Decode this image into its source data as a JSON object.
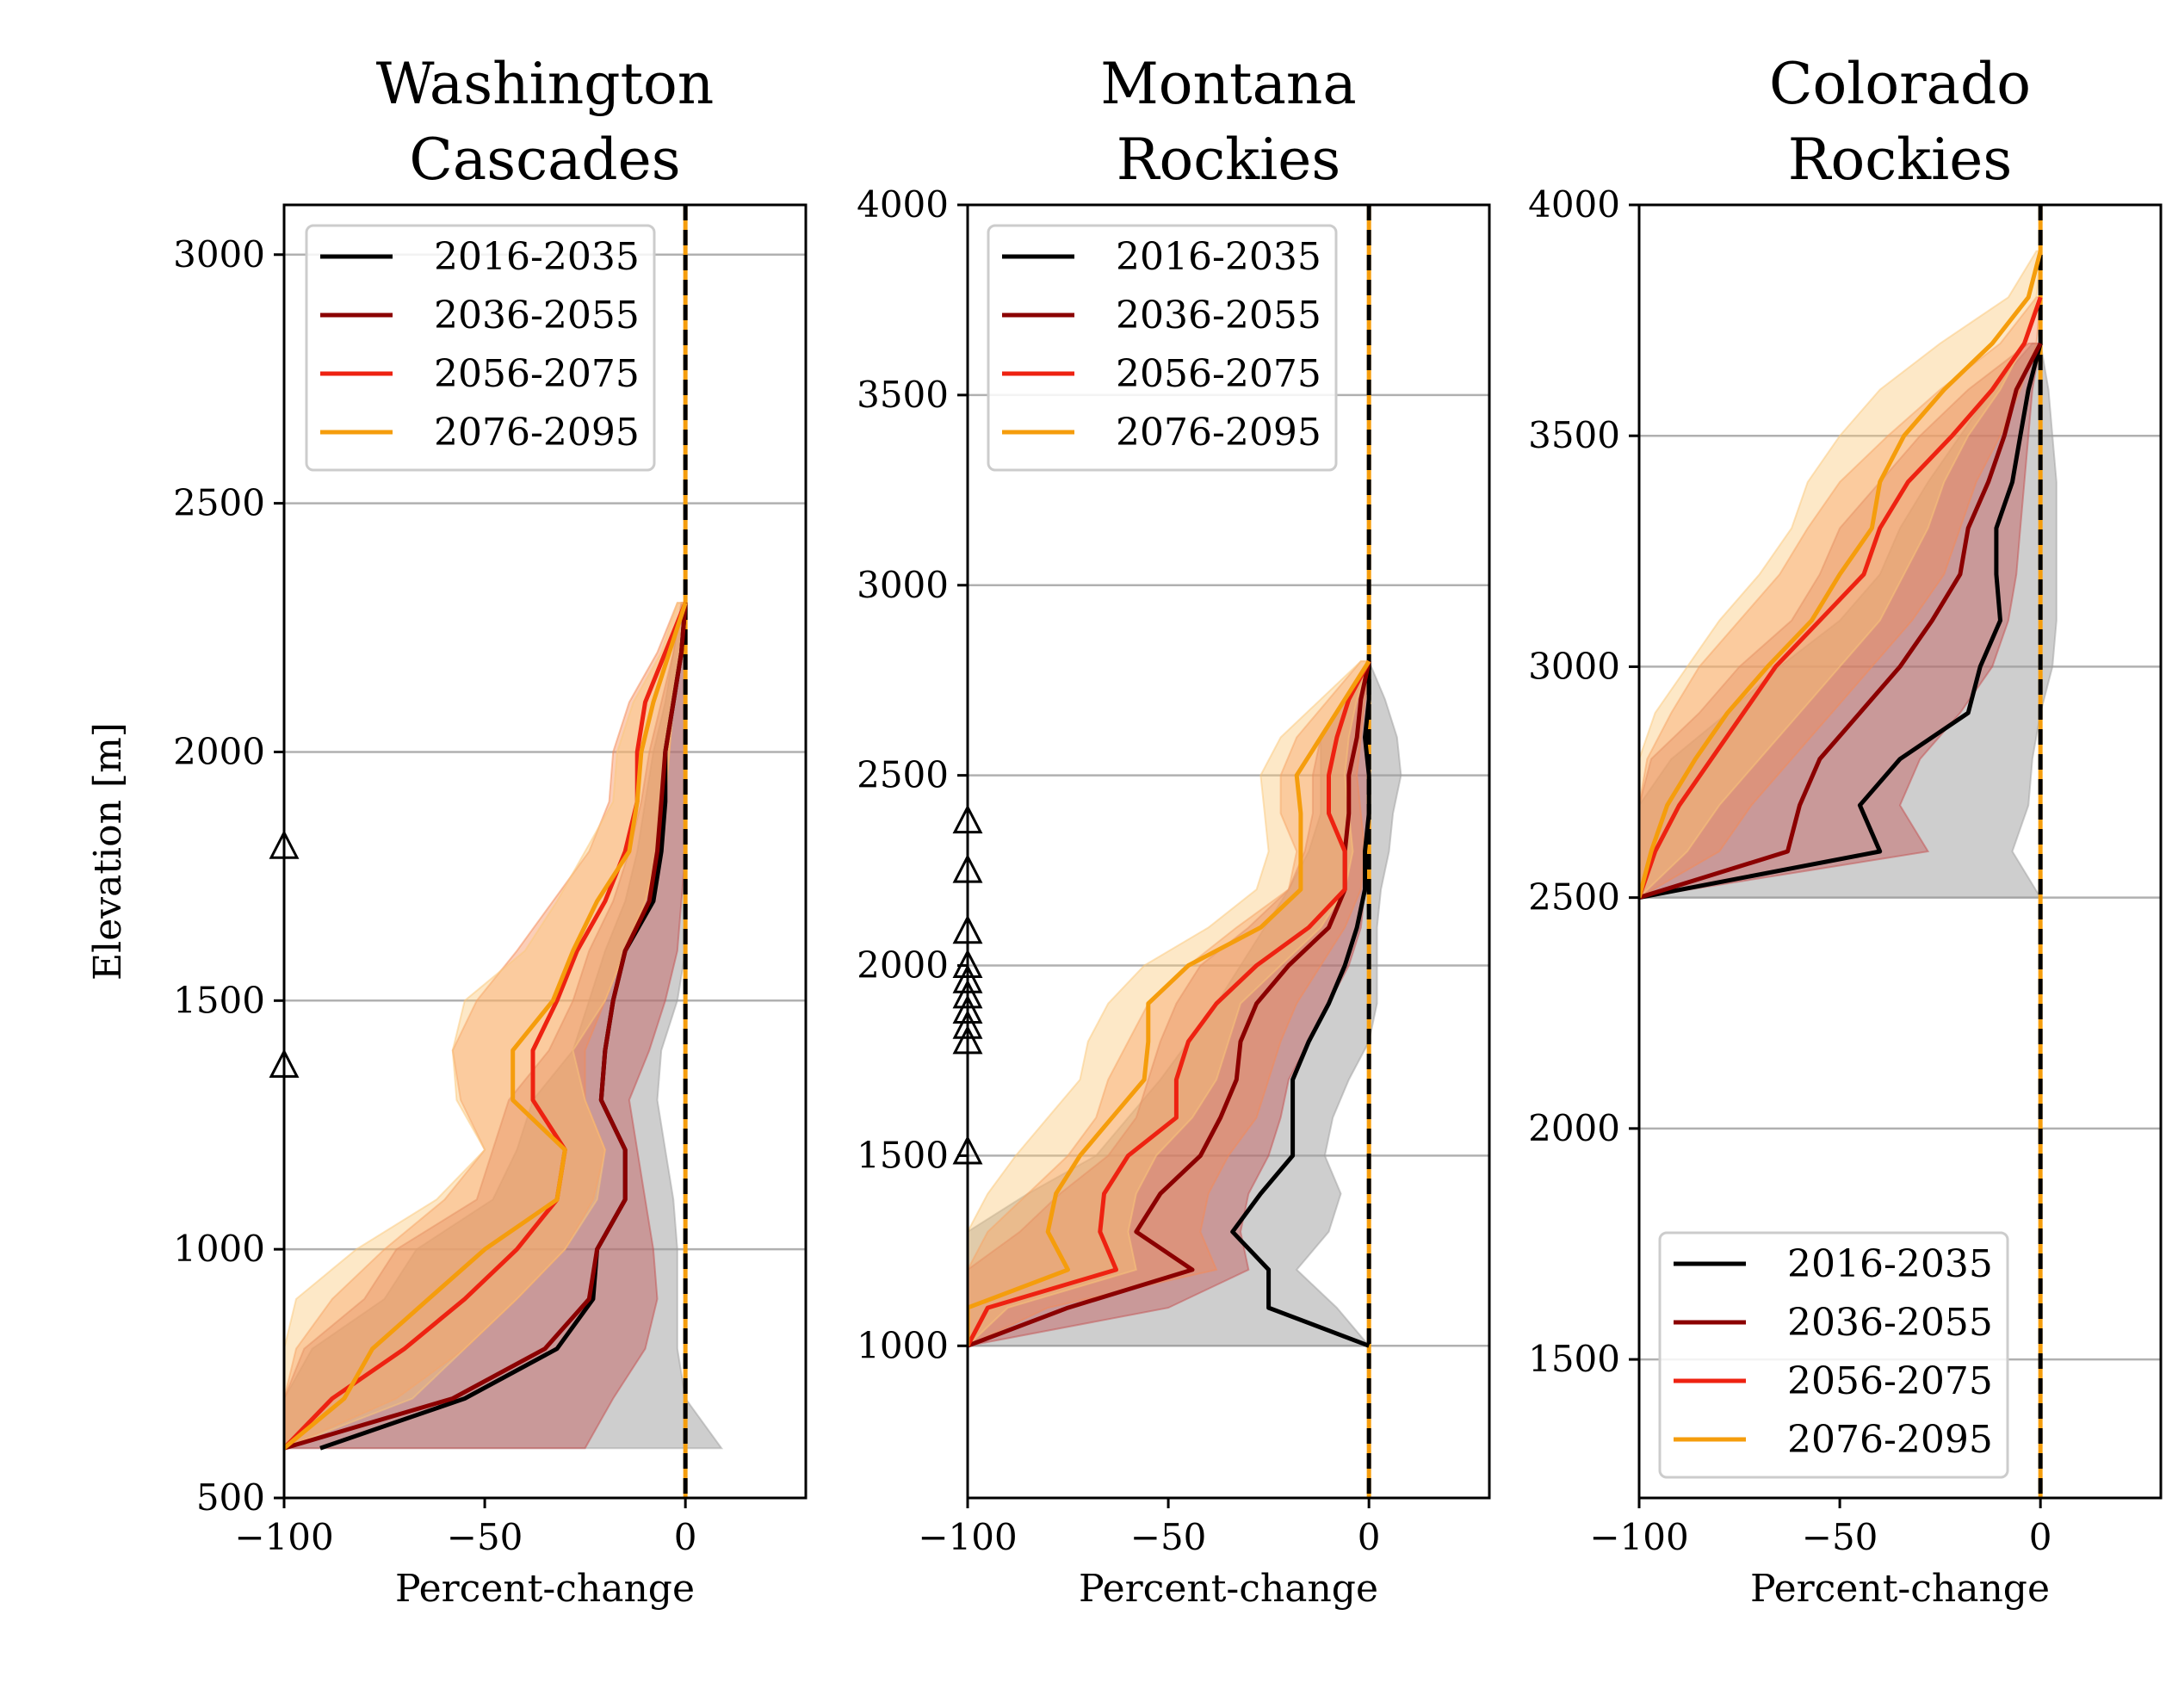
{
  "series_colors": {
    "2016-2035": "#000000",
    "2036-2055": "#8b0000",
    "2056-2075": "#ee2211",
    "2076-2095": "#f59d0c"
  },
  "band_colors": {
    "2016-2035": "#9e9e9e",
    "2036-2055": "#c45050",
    "2056-2075": "#f58a55",
    "2076-2095": "#fbc77a"
  },
  "chart_data": [
    {
      "type": "line",
      "title": "Washington\nCascades",
      "xlabel": "Percent-change",
      "ylabel": "Elevation [m]",
      "xlim": [
        -100,
        30
      ],
      "ylim": [
        500,
        3100
      ],
      "xticks": [
        -100,
        -50,
        0
      ],
      "xtick_labels": [
        "−100",
        "−50",
        "0"
      ],
      "yticks": [
        500,
        1000,
        1500,
        2000,
        2500,
        3000
      ],
      "ytick_labels": [
        "500",
        "1000",
        "1500",
        "2000",
        "2500",
        "3000"
      ],
      "grid": "y",
      "legend": "upper-left",
      "zero_line": true,
      "triangle_markers_y": [
        1370,
        1810
      ],
      "series": [
        {
          "name": "2016-2035",
          "y": [
            600,
            700,
            800,
            900,
            1000,
            1100,
            1200,
            1300,
            1400,
            1500,
            1600,
            1700,
            1800,
            1900,
            2000,
            2100,
            2200,
            2300
          ],
          "x": [
            -91,
            -55,
            -32,
            -23,
            -22,
            -15,
            -15,
            -21,
            -20,
            -18,
            -15,
            -8,
            -6,
            -5,
            -5,
            -3,
            -1,
            0
          ],
          "lower": [
            -100,
            -100,
            -93,
            -75,
            -67,
            -48,
            -42,
            -38,
            -28,
            -24,
            -20,
            -15,
            -12,
            -10,
            -8,
            -5,
            -3,
            -1
          ],
          "upper": [
            9,
            0,
            -2,
            -2,
            -2,
            -3,
            -5,
            -7,
            -6,
            -2,
            0,
            0,
            0,
            0,
            0,
            0,
            0,
            0
          ]
        },
        {
          "name": "2036-2055",
          "y": [
            600,
            700,
            800,
            900,
            1000,
            1100,
            1200,
            1300,
            1400,
            1500,
            1600,
            1700,
            1800,
            1900,
            2000,
            2100,
            2200,
            2300
          ],
          "x": [
            -100,
            -58,
            -35,
            -24,
            -22,
            -15,
            -15,
            -21,
            -20,
            -18,
            -15,
            -9,
            -7,
            -6,
            -5,
            -3,
            -1,
            0
          ],
          "lower": [
            -100,
            -100,
            -95,
            -80,
            -72,
            -52,
            -48,
            -44,
            -34,
            -28,
            -24,
            -18,
            -14,
            -11,
            -9,
            -6,
            -3,
            -1
          ],
          "upper": [
            -25,
            -18,
            -10,
            -7,
            -8,
            -10,
            -12,
            -14,
            -9,
            -5,
            -2,
            -1,
            0,
            0,
            0,
            0,
            0,
            0
          ]
        },
        {
          "name": "2056-2075",
          "y": [
            600,
            700,
            800,
            900,
            1000,
            1100,
            1200,
            1300,
            1400,
            1500,
            1600,
            1700,
            1800,
            1900,
            2000,
            2100,
            2200,
            2300
          ],
          "x": [
            -100,
            -88,
            -70,
            -55,
            -42,
            -32,
            -30,
            -38,
            -38,
            -32,
            -27,
            -20,
            -15,
            -12,
            -12,
            -10,
            -5,
            0
          ],
          "lower": [
            -100,
            -100,
            -97,
            -88,
            -75,
            -60,
            -50,
            -56,
            -58,
            -52,
            -42,
            -33,
            -24,
            -19,
            -18,
            -14,
            -7,
            -2
          ],
          "upper": [
            -100,
            -72,
            -55,
            -42,
            -30,
            -23,
            -20,
            -25,
            -25,
            -20,
            -15,
            -10,
            -7,
            -5,
            -4,
            -3,
            -1,
            0
          ]
        },
        {
          "name": "2076-2095",
          "y": [
            600,
            700,
            800,
            900,
            1000,
            1100,
            1200,
            1300,
            1400,
            1500,
            1600,
            1700,
            1800,
            1900,
            2000,
            2100,
            2200,
            2300
          ],
          "x": [
            -100,
            -85,
            -78,
            -64,
            -50,
            -32,
            -30,
            -43,
            -43,
            -33,
            -28,
            -22,
            -14,
            -12,
            -11,
            -8,
            -4,
            0
          ],
          "lower": [
            -100,
            -100,
            -100,
            -97,
            -82,
            -62,
            -50,
            -57,
            -58,
            -55,
            -40,
            -32,
            -25,
            -18,
            -17,
            -13,
            -6,
            -2
          ],
          "upper": [
            -100,
            -68,
            -55,
            -42,
            -30,
            -22,
            -20,
            -25,
            -28,
            -20,
            -15,
            -10,
            -7,
            -5,
            -4,
            -3,
            -1,
            0
          ]
        }
      ]
    },
    {
      "type": "line",
      "title": "Montana\nRockies",
      "xlabel": "Percent-change",
      "ylabel": "",
      "xlim": [
        -100,
        30
      ],
      "ylim": [
        600,
        4000
      ],
      "xticks": [
        -100,
        -50,
        0
      ],
      "xtick_labels": [
        "−100",
        "−50",
        "0"
      ],
      "yticks": [
        1000,
        1500,
        2000,
        2500,
        3000,
        3500,
        4000
      ],
      "ytick_labels": [
        "1000",
        "1500",
        "2000",
        "2500",
        "3000",
        "3500",
        "4000"
      ],
      "grid": "y",
      "legend": "upper-left",
      "zero_line": true,
      "triangle_markers_y": [
        1510,
        1800,
        1840,
        1880,
        1920,
        1960,
        2000,
        2090,
        2250,
        2380
      ],
      "series": [
        {
          "name": "2016-2035",
          "y": [
            1000,
            1100,
            1200,
            1300,
            1400,
            1500,
            1600,
            1700,
            1800,
            1900,
            2000,
            2100,
            2200,
            2300,
            2400,
            2500,
            2600,
            2700,
            2800
          ],
          "x": [
            0,
            -25,
            -25,
            -34,
            -27,
            -19,
            -19,
            -19,
            -15,
            -10,
            -6,
            -3,
            -1,
            -1,
            0,
            0,
            -1,
            0,
            0
          ],
          "lower": [
            -100,
            -100,
            -100,
            -100,
            -85,
            -68,
            -60,
            -52,
            -45,
            -38,
            -32,
            -26,
            -20,
            -15,
            -12,
            -12,
            -12,
            -6,
            0
          ],
          "upper": [
            0,
            -8,
            -18,
            -10,
            -7,
            -11,
            -9,
            -5,
            0,
            2,
            2,
            2,
            3,
            5,
            6,
            8,
            7,
            4,
            0
          ]
        },
        {
          "name": "2036-2055",
          "y": [
            1000,
            1100,
            1200,
            1300,
            1400,
            1500,
            1600,
            1700,
            1800,
            1900,
            2000,
            2100,
            2200,
            2300,
            2400,
            2500,
            2600,
            2700,
            2800
          ],
          "x": [
            -100,
            -75,
            -44,
            -58,
            -52,
            -42,
            -37,
            -33,
            -32,
            -28,
            -20,
            -10,
            -6,
            -6,
            -5,
            -5,
            -3,
            -2,
            0
          ],
          "lower": [
            -100,
            -100,
            -100,
            -87,
            -77,
            -65,
            -58,
            -55,
            -52,
            -48,
            -42,
            -30,
            -20,
            -16,
            -14,
            -14,
            -12,
            -6,
            0
          ],
          "upper": [
            -100,
            -50,
            -30,
            -32,
            -30,
            -25,
            -22,
            -20,
            -15,
            -10,
            -5,
            -2,
            -1,
            0,
            0,
            0,
            0,
            0,
            0
          ]
        },
        {
          "name": "2056-2075",
          "y": [
            1000,
            1100,
            1200,
            1300,
            1400,
            1500,
            1600,
            1700,
            1800,
            1900,
            2000,
            2100,
            2200,
            2300,
            2400,
            2500,
            2600,
            2700,
            2800
          ],
          "x": [
            -100,
            -95,
            -63,
            -67,
            -66,
            -60,
            -48,
            -48,
            -45,
            -38,
            -28,
            -15,
            -6,
            -6,
            -10,
            -10,
            -8,
            -5,
            0
          ],
          "lower": [
            -100,
            -100,
            -100,
            -95,
            -85,
            -75,
            -68,
            -65,
            -60,
            -55,
            -45,
            -33,
            -20,
            -18,
            -22,
            -22,
            -18,
            -10,
            -2
          ],
          "upper": [
            -100,
            -80,
            -38,
            -42,
            -40,
            -35,
            -28,
            -25,
            -22,
            -18,
            -12,
            -6,
            -2,
            -1,
            -2,
            -3,
            -2,
            -1,
            0
          ]
        },
        {
          "name": "2076-2095",
          "y": [
            1000,
            1100,
            1200,
            1300,
            1400,
            1500,
            1600,
            1700,
            1800,
            1900,
            2000,
            2100,
            2200,
            2300,
            2400,
            2500,
            2600,
            2700,
            2800
          ],
          "x": [
            -100,
            -100,
            -75,
            -80,
            -78,
            -72,
            -64,
            -56,
            -55,
            -55,
            -45,
            -27,
            -17,
            -17,
            -17,
            -18,
            -12,
            -6,
            0
          ],
          "lower": [
            -100,
            -100,
            -100,
            -100,
            -95,
            -88,
            -80,
            -72,
            -70,
            -65,
            -56,
            -40,
            -28,
            -25,
            -26,
            -27,
            -22,
            -12,
            -2
          ],
          "upper": [
            -100,
            -90,
            -58,
            -60,
            -58,
            -53,
            -44,
            -38,
            -35,
            -32,
            -22,
            -12,
            -6,
            -4,
            -5,
            -6,
            -5,
            -3,
            0
          ]
        }
      ]
    },
    {
      "type": "line",
      "title": "Colorado\nRockies",
      "xlabel": "Percent-change",
      "ylabel": "",
      "xlim": [
        -100,
        30
      ],
      "ylim": [
        1200,
        4000
      ],
      "xticks": [
        -100,
        -50,
        0
      ],
      "xtick_labels": [
        "−100",
        "−50",
        "0"
      ],
      "yticks": [
        1500,
        2000,
        2500,
        3000,
        3500,
        4000
      ],
      "ytick_labels": [
        "1500",
        "2000",
        "2500",
        "3000",
        "3500",
        "4000"
      ],
      "grid": "y",
      "legend": "lower-left",
      "zero_line": true,
      "triangle_markers_y": [],
      "series": [
        {
          "name": "2016-2035",
          "y": [
            2500,
            2600,
            2700,
            2800,
            2900,
            3000,
            3100,
            3200,
            3300,
            3400,
            3500,
            3600,
            3700
          ],
          "x": [
            -100,
            -40,
            -45,
            -35,
            -18,
            -15,
            -10,
            -11,
            -11,
            -7,
            -5,
            -3,
            0
          ],
          "lower": [
            -100,
            -100,
            -100,
            -92,
            -78,
            -65,
            -50,
            -40,
            -35,
            -28,
            -20,
            -12,
            -2
          ],
          "upper": [
            0,
            -7,
            -3,
            -2,
            0,
            3,
            4,
            4,
            4,
            4,
            3,
            2,
            0
          ]
        },
        {
          "name": "2036-2055",
          "y": [
            2500,
            2600,
            2700,
            2800,
            2900,
            3000,
            3100,
            3200,
            3300,
            3400,
            3500,
            3600,
            3700
          ],
          "x": [
            -100,
            -63,
            -60,
            -55,
            -45,
            -35,
            -27,
            -20,
            -18,
            -13,
            -9,
            -6,
            0
          ],
          "lower": [
            -100,
            -100,
            -100,
            -97,
            -85,
            -75,
            -62,
            -55,
            -50,
            -40,
            -30,
            -18,
            -3
          ],
          "upper": [
            -100,
            -28,
            -35,
            -30,
            -20,
            -12,
            -8,
            -6,
            -5,
            -4,
            -3,
            -2,
            0
          ]
        },
        {
          "name": "2056-2075",
          "y": [
            2500,
            2600,
            2700,
            2800,
            2900,
            3000,
            3100,
            3200,
            3300,
            3400,
            3500,
            3600,
            3700,
            3800
          ],
          "x": [
            -100,
            -96,
            -90,
            -82,
            -74,
            -66,
            -55,
            -44,
            -40,
            -33,
            -22,
            -12,
            -4,
            0
          ],
          "lower": [
            -100,
            -100,
            -100,
            -98,
            -92,
            -85,
            -75,
            -65,
            -58,
            -50,
            -38,
            -25,
            -10,
            -1
          ],
          "upper": [
            -100,
            -80,
            -72,
            -62,
            -52,
            -42,
            -32,
            -24,
            -20,
            -16,
            -10,
            -5,
            -1,
            0
          ]
        },
        {
          "name": "2076-2095",
          "y": [
            2500,
            2600,
            2700,
            2800,
            2900,
            3000,
            3100,
            3200,
            3300,
            3400,
            3500,
            3600,
            3700,
            3800,
            3900
          ],
          "x": [
            -100,
            -97,
            -93,
            -86,
            -78,
            -68,
            -57,
            -50,
            -42,
            -40,
            -34,
            -24,
            -12,
            -3,
            0
          ],
          "lower": [
            -100,
            -100,
            -100,
            -100,
            -96,
            -88,
            -80,
            -70,
            -62,
            -58,
            -50,
            -40,
            -25,
            -8,
            -1
          ],
          "upper": [
            -100,
            -88,
            -80,
            -70,
            -60,
            -50,
            -40,
            -34,
            -28,
            -24,
            -18,
            -10,
            -4,
            -1,
            0
          ]
        }
      ]
    }
  ]
}
